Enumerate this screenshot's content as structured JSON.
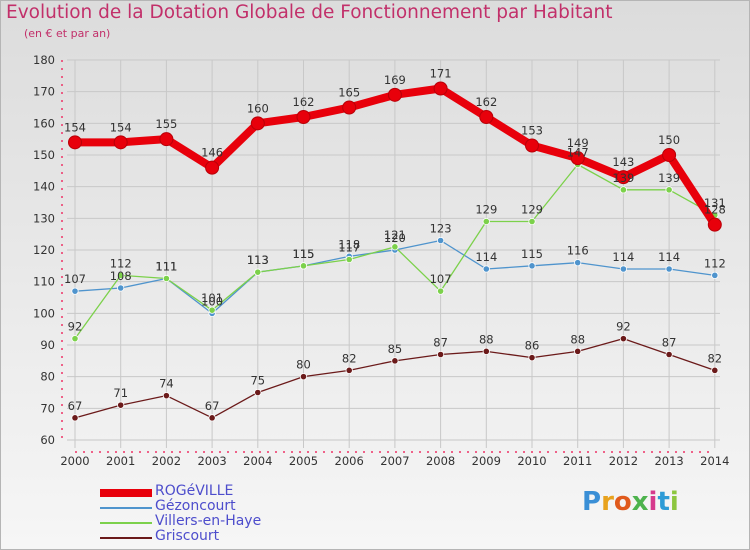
{
  "title": "Evolution de la Dotation Globale de Fonctionnement par Habitant",
  "subtitle": "(en € et par an)",
  "logo": "Proxiti",
  "chart_data": {
    "type": "line",
    "title": "Evolution de la Dotation Globale de Fonctionnement par Habitant",
    "subtitle": "(en € et par an)",
    "x": [
      "2000",
      "2001",
      "2002",
      "2003",
      "2004",
      "2005",
      "2006",
      "2007",
      "2008",
      "2009",
      "2010",
      "2011",
      "2012",
      "2013",
      "2014"
    ],
    "ylim": [
      60,
      180
    ],
    "yticks": [
      60,
      70,
      80,
      90,
      100,
      110,
      120,
      130,
      140,
      150,
      160,
      170,
      180
    ],
    "grid": true,
    "legend_position": "bottom-left",
    "series": [
      {
        "name": "ROGéVILLE",
        "color": "#e8000b",
        "values": [
          154,
          154,
          155,
          146,
          160,
          162,
          165,
          169,
          171,
          162,
          153,
          149,
          143,
          150,
          128
        ]
      },
      {
        "name": "Gézoncourt",
        "color": "#4f94cd",
        "values": [
          107,
          108,
          111,
          100,
          113,
          115,
          118,
          120,
          123,
          114,
          115,
          116,
          114,
          114,
          112
        ]
      },
      {
        "name": "Villers-en-Haye",
        "color": "#7cd14b",
        "values": [
          92,
          112,
          111,
          101,
          113,
          115,
          117,
          121,
          107,
          129,
          129,
          147,
          139,
          139,
          131
        ]
      },
      {
        "name": "Griscourt",
        "color": "#6b1a1a",
        "values": [
          67,
          71,
          74,
          67,
          75,
          80,
          82,
          85,
          87,
          88,
          86,
          88,
          92,
          87,
          82
        ]
      }
    ]
  }
}
